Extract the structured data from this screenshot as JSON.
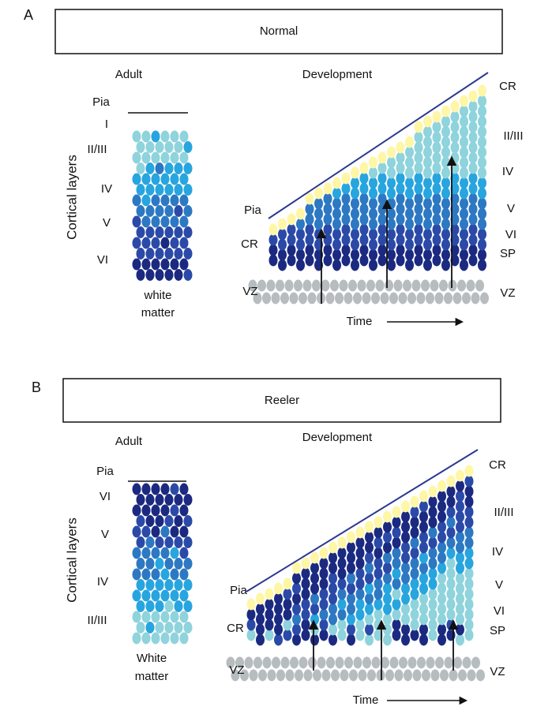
{
  "panels": [
    {
      "label": "A",
      "title": "Normal",
      "adult": {
        "title": "Adult",
        "pia": "Pia",
        "axis_label": "Cortical layers",
        "layers": [
          "I",
          "II/III",
          "IV",
          "V",
          "VI"
        ],
        "bottom": [
          "white",
          "matter"
        ]
      },
      "development": {
        "title": "Development",
        "left_labels": [
          "Pia",
          "CR",
          "VZ"
        ],
        "right_labels": [
          "CR",
          "II/III",
          "IV",
          "V",
          "VI",
          "SP",
          "VZ"
        ],
        "time": "Time"
      }
    },
    {
      "label": "B",
      "title": "Reeler",
      "adult": {
        "title": "Adult",
        "pia": "Pia",
        "axis_label": "Cortical layers",
        "layers": [
          "VI",
          "V",
          "IV",
          "II/III"
        ],
        "bottom": [
          "White",
          "matter"
        ]
      },
      "development": {
        "title": "Development",
        "left_labels": [
          "Pia",
          "CR",
          "VZ"
        ],
        "right_labels": [
          "CR",
          "II/III",
          "IV",
          "V",
          "VI",
          "SP",
          "VZ"
        ],
        "time": "Time"
      }
    }
  ]
}
